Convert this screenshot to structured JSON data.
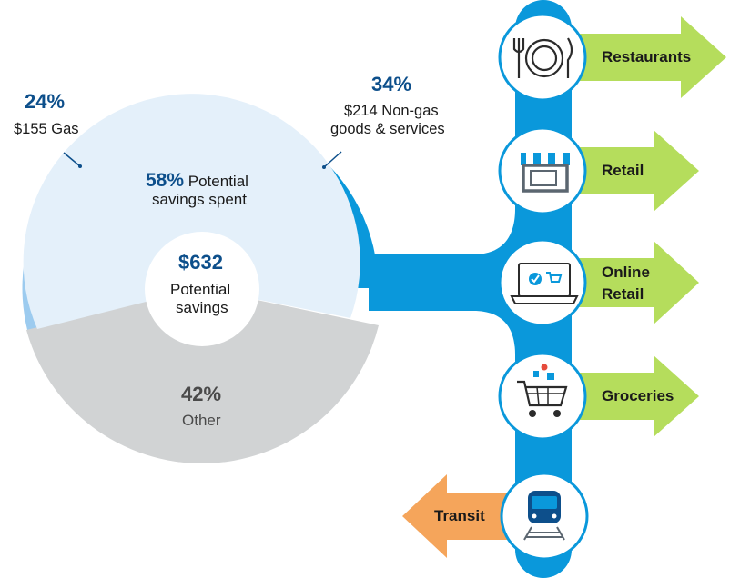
{
  "chart_data": {
    "type": "pie",
    "center": {
      "value": "$632",
      "label_line1": "Potential",
      "label_line2": "savings"
    },
    "slices": [
      {
        "name": "$155 Gas",
        "percent_label": "24%",
        "value": 24,
        "color": "#9ccbef"
      },
      {
        "name": "$214 Non-gas goods & services",
        "percent_label": "34%",
        "value": 34,
        "color": "#0a98db"
      },
      {
        "name": "Other",
        "percent_label": "42%",
        "value": 42,
        "color": "#d1d3d4"
      }
    ],
    "inner_group": {
      "percent_label": "58%",
      "text_line1": "Potential",
      "text_line2": "savings spent",
      "color": "#e4f0fa"
    }
  },
  "labels": {
    "gas_pct": "24%",
    "gas_text": "$155 Gas",
    "nongas_pct": "34%",
    "nongas_line1": "$214 Non-gas",
    "nongas_line2": "goods & services",
    "spent_pct": "58%",
    "spent_line1": "Potential",
    "spent_line2": "savings spent",
    "other_pct": "42%",
    "other_text": "Other"
  },
  "categories": [
    {
      "label": "Restaurants",
      "icon": "fork-plate-knife-icon",
      "direction": "right",
      "color": "#b5dd5c"
    },
    {
      "label": "Retail",
      "icon": "storefront-icon",
      "direction": "right",
      "color": "#b5dd5c"
    },
    {
      "label_line1": "Online",
      "label_line2": "Retail",
      "icon": "laptop-cart-icon",
      "direction": "right",
      "color": "#b5dd5c"
    },
    {
      "label": "Groceries",
      "icon": "shopping-cart-icon",
      "direction": "right",
      "color": "#b5dd5c"
    },
    {
      "label": "Transit",
      "icon": "train-icon",
      "direction": "left",
      "color": "#f5a55b"
    }
  ],
  "colors": {
    "trunk": "#0a98db",
    "text_blue": "#0d4f8b",
    "icon_dark": "#2b2b2b"
  }
}
